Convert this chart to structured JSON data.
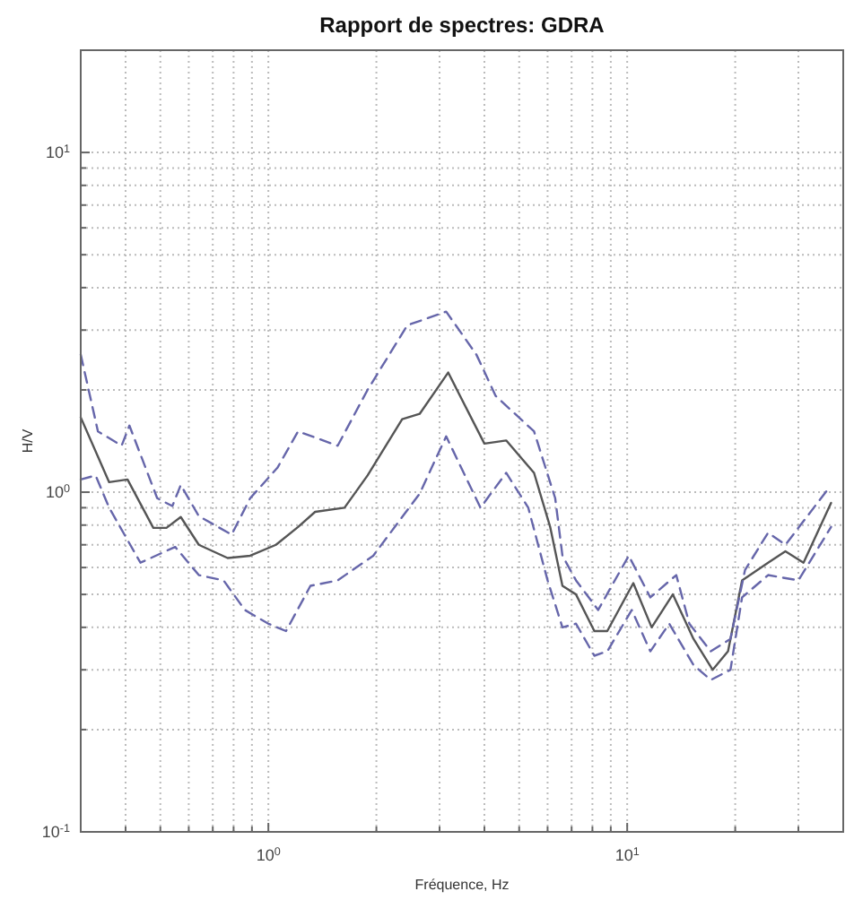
{
  "chart_data": {
    "type": "line",
    "title": "Rapport de spectres: GDRA",
    "xlabel": "Fréquence, Hz",
    "ylabel": "H/V",
    "log": "xy",
    "grid": true,
    "marker": "none",
    "xlim": [
      0.3,
      40
    ],
    "ylim": [
      0.1,
      20
    ],
    "xticks": [
      {
        "value": 0.3,
        "label": null
      },
      {
        "value": 0.4,
        "label": null
      },
      {
        "value": 0.5,
        "label": null
      },
      {
        "value": 0.6,
        "label": null
      },
      {
        "value": 0.7,
        "label": null
      },
      {
        "value": 0.8,
        "label": null
      },
      {
        "value": 0.9,
        "label": null
      },
      {
        "value": 1,
        "label": "10$^{0}$"
      },
      {
        "value": 2,
        "label": null
      },
      {
        "value": 3,
        "label": null
      },
      {
        "value": 4,
        "label": null
      },
      {
        "value": 5,
        "label": null
      },
      {
        "value": 6,
        "label": null
      },
      {
        "value": 7,
        "label": null
      },
      {
        "value": 8,
        "label": null
      },
      {
        "value": 9,
        "label": null
      },
      {
        "value": 10,
        "label": "10$^{1}$"
      },
      {
        "value": 20,
        "label": null
      },
      {
        "value": 30,
        "label": null
      }
    ],
    "yticks": [
      {
        "value": 0.1,
        "label": "10$^{-1}$"
      },
      {
        "value": 0.2,
        "label": null
      },
      {
        "value": 0.3,
        "label": null
      },
      {
        "value": 0.4,
        "label": null
      },
      {
        "value": 0.5,
        "label": null
      },
      {
        "value": 0.6,
        "label": null
      },
      {
        "value": 0.7,
        "label": null
      },
      {
        "value": 0.8,
        "label": null
      },
      {
        "value": 0.9,
        "label": null
      },
      {
        "value": 1,
        "label": "10$^{0}$"
      },
      {
        "value": 2,
        "label": null
      },
      {
        "value": 3,
        "label": null
      },
      {
        "value": 4,
        "label": null
      },
      {
        "value": 5,
        "label": null
      },
      {
        "value": 6,
        "label": null
      },
      {
        "value": 7,
        "label": null
      },
      {
        "value": 8,
        "label": null
      },
      {
        "value": 9,
        "label": null
      },
      {
        "value": 10,
        "label": "10$^{1}$"
      }
    ],
    "series": [
      {
        "color": "#555555",
        "line_style": "solid",
        "x": [
          0.3,
          0.36,
          0.405,
          0.478,
          0.52,
          0.57,
          0.64,
          0.77,
          0.89,
          1.05,
          1.21,
          1.35,
          1.63,
          1.89,
          2.36,
          2.64,
          3.17,
          4.0,
          4.6,
          5.5,
          6.1,
          6.6,
          7.2,
          8.1,
          8.8,
          10.4,
          11.7,
          13.4,
          15.3,
          17.3,
          19.1,
          20.9,
          24.7,
          27.6,
          31,
          37
        ],
        "values": [
          1.66,
          1.07,
          1.09,
          0.785,
          0.785,
          0.845,
          0.7,
          0.64,
          0.65,
          0.7,
          0.79,
          0.875,
          0.9,
          1.12,
          1.64,
          1.7,
          2.25,
          1.39,
          1.42,
          1.14,
          0.79,
          0.53,
          0.5,
          0.39,
          0.39,
          0.54,
          0.4,
          0.5,
          0.37,
          0.3,
          0.34,
          0.55,
          0.62,
          0.67,
          0.62,
          0.93
        ]
      },
      {
        "color": "#6666aa",
        "line_style": "dashed",
        "x": [
          0.3,
          0.335,
          0.39,
          0.41,
          0.49,
          0.54,
          0.57,
          0.64,
          0.79,
          0.89,
          1.06,
          1.21,
          1.56,
          1.89,
          2.44,
          3.13,
          3.8,
          4.3,
          5.5,
          6.3,
          6.6,
          7.2,
          8.3,
          10.1,
          11.6,
          13.7,
          14.9,
          17.1,
          19.4,
          21.3,
          24.7,
          27.6,
          36
        ],
        "values": [
          2.54,
          1.51,
          1.37,
          1.57,
          0.96,
          0.91,
          1.05,
          0.85,
          0.75,
          0.96,
          1.18,
          1.51,
          1.37,
          2.0,
          3.1,
          3.4,
          2.54,
          1.92,
          1.51,
          0.96,
          0.65,
          0.55,
          0.45,
          0.65,
          0.49,
          0.57,
          0.41,
          0.34,
          0.37,
          0.59,
          0.76,
          0.7,
          1.01
        ]
      },
      {
        "color": "#6666aa",
        "line_style": "dashed",
        "x": [
          0.3,
          0.33,
          0.36,
          0.44,
          0.55,
          0.64,
          0.75,
          0.86,
          1.0,
          1.12,
          1.31,
          1.56,
          1.96,
          2.64,
          3.13,
          3.9,
          4.6,
          5.3,
          6.0,
          6.6,
          7.2,
          8.1,
          8.8,
          10.3,
          11.6,
          13.1,
          15.3,
          17.1,
          19.4,
          20.9,
          24.7,
          30,
          37
        ],
        "values": [
          1.09,
          1.12,
          0.9,
          0.62,
          0.69,
          0.57,
          0.55,
          0.45,
          0.41,
          0.39,
          0.53,
          0.55,
          0.65,
          0.99,
          1.46,
          0.9,
          1.14,
          0.9,
          0.55,
          0.4,
          0.41,
          0.33,
          0.34,
          0.45,
          0.34,
          0.41,
          0.31,
          0.28,
          0.3,
          0.49,
          0.57,
          0.55,
          0.79
        ]
      }
    ]
  }
}
